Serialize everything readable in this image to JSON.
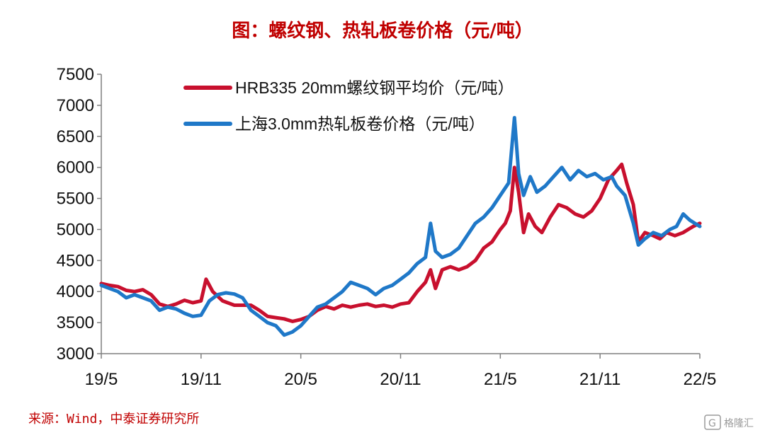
{
  "title": "图：螺纹钢、热轧板卷价格（元/吨）",
  "source": "来源：Wind，中泰证券研究所",
  "watermark": "格隆汇",
  "watermark_icon": "logo-icon",
  "colors": {
    "title": "#c00000",
    "rebar": "#c8102e",
    "hrc": "#1f78c8",
    "axis": "#7f7f7f",
    "source": "#c00000"
  },
  "chart_data": {
    "type": "line",
    "title": "图：螺纹钢、热轧板卷价格（元/吨）",
    "xlabel": "",
    "ylabel": "",
    "ylim": [
      3000,
      7500
    ],
    "yticks": [
      3000,
      3500,
      4000,
      4500,
      5000,
      5500,
      6000,
      6500,
      7000,
      7500
    ],
    "xticks": [
      "19/5",
      "19/11",
      "20/5",
      "20/11",
      "21/5",
      "21/11",
      "22/5"
    ],
    "x_unit": "months since 19/5",
    "xlim": [
      0,
      36
    ],
    "grid": false,
    "legend": "top-center",
    "series": [
      {
        "name": "HRB335 20mm螺纹钢平均价（元/吨）",
        "color": "#c8102e",
        "points": [
          [
            0,
            4130
          ],
          [
            0.5,
            4100
          ],
          [
            1,
            4080
          ],
          [
            1.5,
            4020
          ],
          [
            2,
            4000
          ],
          [
            2.5,
            4030
          ],
          [
            3,
            3950
          ],
          [
            3.5,
            3800
          ],
          [
            4,
            3760
          ],
          [
            4.5,
            3800
          ],
          [
            5,
            3860
          ],
          [
            5.5,
            3820
          ],
          [
            6,
            3850
          ],
          [
            6.3,
            4200
          ],
          [
            6.7,
            4000
          ],
          [
            7.3,
            3850
          ],
          [
            8,
            3780
          ],
          [
            9,
            3780
          ],
          [
            9.5,
            3700
          ],
          [
            10,
            3600
          ],
          [
            10.5,
            3580
          ],
          [
            11,
            3560
          ],
          [
            11.5,
            3520
          ],
          [
            12,
            3550
          ],
          [
            12.5,
            3600
          ],
          [
            13,
            3700
          ],
          [
            13.5,
            3760
          ],
          [
            14,
            3720
          ],
          [
            14.5,
            3780
          ],
          [
            15,
            3750
          ],
          [
            15.5,
            3780
          ],
          [
            16,
            3800
          ],
          [
            16.5,
            3760
          ],
          [
            17,
            3780
          ],
          [
            17.5,
            3750
          ],
          [
            18,
            3800
          ],
          [
            18.5,
            3820
          ],
          [
            19,
            4000
          ],
          [
            19.5,
            4150
          ],
          [
            19.8,
            4350
          ],
          [
            20.1,
            4050
          ],
          [
            20.5,
            4350
          ],
          [
            21,
            4400
          ],
          [
            21.5,
            4350
          ],
          [
            22,
            4400
          ],
          [
            22.5,
            4500
          ],
          [
            23,
            4700
          ],
          [
            23.5,
            4800
          ],
          [
            24,
            5000
          ],
          [
            24.3,
            5100
          ],
          [
            24.6,
            5300
          ],
          [
            24.85,
            6000
          ],
          [
            25.1,
            5600
          ],
          [
            25.4,
            4950
          ],
          [
            25.7,
            5250
          ],
          [
            26.1,
            5050
          ],
          [
            26.5,
            4950
          ],
          [
            27,
            5200
          ],
          [
            27.5,
            5400
          ],
          [
            28,
            5350
          ],
          [
            28.5,
            5250
          ],
          [
            29,
            5200
          ],
          [
            29.5,
            5300
          ],
          [
            30,
            5500
          ],
          [
            30.5,
            5800
          ],
          [
            31,
            5950
          ],
          [
            31.3,
            6050
          ],
          [
            31.6,
            5750
          ],
          [
            32,
            5400
          ],
          [
            32.3,
            4800
          ],
          [
            32.7,
            4950
          ],
          [
            33.2,
            4900
          ],
          [
            33.6,
            4850
          ],
          [
            34,
            4950
          ],
          [
            34.5,
            4900
          ],
          [
            35,
            4950
          ],
          [
            35.3,
            5000
          ],
          [
            35.6,
            5050
          ],
          [
            36,
            5100
          ]
        ]
      },
      {
        "name": "上海3.0mm热轧板卷价格（元/吨）",
        "color": "#1f78c8",
        "points": [
          [
            0,
            4100
          ],
          [
            0.5,
            4050
          ],
          [
            1,
            4000
          ],
          [
            1.5,
            3900
          ],
          [
            2,
            3950
          ],
          [
            2.5,
            3900
          ],
          [
            3,
            3850
          ],
          [
            3.5,
            3700
          ],
          [
            4,
            3750
          ],
          [
            4.5,
            3720
          ],
          [
            5,
            3650
          ],
          [
            5.5,
            3600
          ],
          [
            6,
            3620
          ],
          [
            6.5,
            3850
          ],
          [
            7,
            3950
          ],
          [
            7.5,
            3980
          ],
          [
            8,
            3960
          ],
          [
            8.5,
            3900
          ],
          [
            9,
            3700
          ],
          [
            9.5,
            3600
          ],
          [
            10,
            3500
          ],
          [
            10.5,
            3450
          ],
          [
            11,
            3300
          ],
          [
            11.5,
            3350
          ],
          [
            12,
            3450
          ],
          [
            12.5,
            3600
          ],
          [
            13,
            3750
          ],
          [
            13.5,
            3800
          ],
          [
            14,
            3900
          ],
          [
            14.5,
            4000
          ],
          [
            15,
            4150
          ],
          [
            15.5,
            4100
          ],
          [
            16,
            4050
          ],
          [
            16.5,
            3950
          ],
          [
            17,
            4050
          ],
          [
            17.5,
            4100
          ],
          [
            18,
            4200
          ],
          [
            18.5,
            4300
          ],
          [
            19,
            4450
          ],
          [
            19.5,
            4550
          ],
          [
            19.8,
            5100
          ],
          [
            20.1,
            4650
          ],
          [
            20.5,
            4550
          ],
          [
            21,
            4600
          ],
          [
            21.5,
            4700
          ],
          [
            22,
            4900
          ],
          [
            22.5,
            5100
          ],
          [
            23,
            5200
          ],
          [
            23.5,
            5350
          ],
          [
            24,
            5550
          ],
          [
            24.5,
            5750
          ],
          [
            24.85,
            6800
          ],
          [
            25.1,
            5900
          ],
          [
            25.4,
            5550
          ],
          [
            25.8,
            5850
          ],
          [
            26.2,
            5600
          ],
          [
            26.7,
            5700
          ],
          [
            27.2,
            5850
          ],
          [
            27.7,
            6000
          ],
          [
            28.2,
            5800
          ],
          [
            28.7,
            5950
          ],
          [
            29.2,
            5850
          ],
          [
            29.7,
            5900
          ],
          [
            30.2,
            5800
          ],
          [
            30.7,
            5850
          ],
          [
            31,
            5700
          ],
          [
            31.5,
            5550
          ],
          [
            32,
            5100
          ],
          [
            32.3,
            4750
          ],
          [
            32.7,
            4850
          ],
          [
            33.2,
            4950
          ],
          [
            33.7,
            4900
          ],
          [
            34.2,
            5000
          ],
          [
            34.6,
            5050
          ],
          [
            35,
            5250
          ],
          [
            35.4,
            5150
          ],
          [
            35.7,
            5100
          ],
          [
            36,
            5050
          ]
        ]
      }
    ]
  }
}
